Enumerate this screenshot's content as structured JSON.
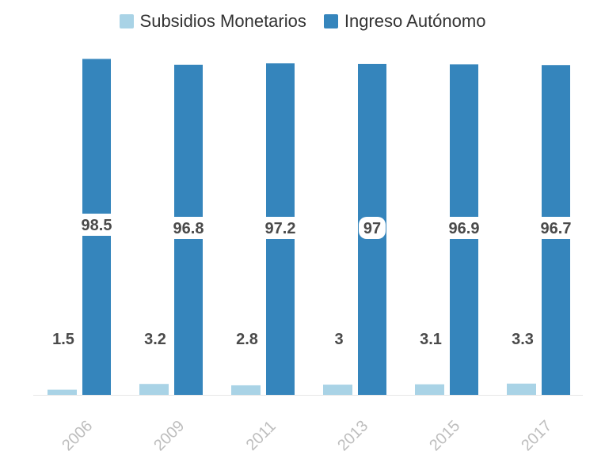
{
  "chart_data": {
    "type": "bar",
    "title": "",
    "xlabel": "",
    "ylabel": "",
    "ylim": [
      0,
      100
    ],
    "grid": false,
    "legend_position": "top-center",
    "categories": [
      "2006",
      "2009",
      "2011",
      "2013",
      "2015",
      "2017"
    ],
    "series": [
      {
        "name": "Subsidios Monetarios",
        "color": "#a9d3e6",
        "values": [
          1.5,
          3.2,
          2.8,
          3,
          3.1,
          3.3
        ],
        "labels": [
          "1.5",
          "3.2",
          "2.8",
          "3",
          "3.1",
          "3.3"
        ]
      },
      {
        "name": "Ingreso Autónomo",
        "color": "#3585bc",
        "values": [
          98.5,
          96.8,
          97.2,
          97,
          96.9,
          96.7
        ],
        "labels": [
          "98.5",
          "96.8",
          "97.2",
          "97",
          "96.9",
          "96.7"
        ]
      }
    ]
  }
}
